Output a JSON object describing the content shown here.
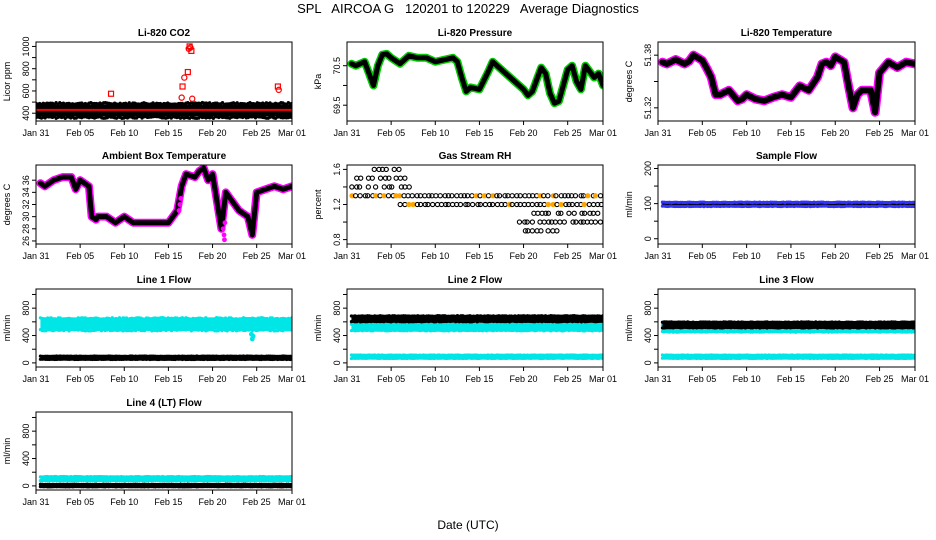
{
  "header": {
    "title": "SPL   AIRCOA G   120201 to 120229   Average Diagnostics"
  },
  "footer": {
    "xlabel": "Date (UTC)"
  },
  "colors": {
    "black": "#000000",
    "red": "#ff0000",
    "magenta": "#ff00ff",
    "green": "#00cc00",
    "cyan": "#00e5e5",
    "orange": "#ffa500",
    "blue": "#3333ff"
  },
  "chart_data": [
    {
      "id": "co2",
      "type": "scatter",
      "title": "Li-820 CO2",
      "ylabel": "Licor ppm",
      "xlim": [
        0,
        29
      ],
      "ylim": [
        330,
        1040
      ],
      "yticks": [
        400,
        500,
        600,
        700,
        800,
        900,
        1000
      ],
      "yticklabels": [
        "400",
        "",
        "600",
        "",
        "800",
        "",
        "1000"
      ],
      "xticks": [
        0,
        5,
        10,
        15,
        20,
        25,
        29
      ],
      "xticklabels": [
        "Jan 31",
        "Feb 05",
        "Feb 10",
        "Feb 15",
        "Feb 20",
        "Feb 25",
        "Mar 01"
      ],
      "series": [
        {
          "name": "black band",
          "style": "band",
          "color": "black",
          "x": [
            0,
            29
          ],
          "lo": [
            370,
            370
          ],
          "hi": [
            480,
            480
          ]
        },
        {
          "name": "red line",
          "style": "line",
          "color": "red",
          "x": [
            0,
            29
          ],
          "y": [
            430,
            430
          ]
        },
        {
          "name": "red outliers",
          "style": "hollow",
          "color": "red",
          "x": [
            8.5,
            16.5,
            16.6,
            16.8,
            17.2,
            17.3,
            17.4,
            17.5,
            17.6,
            17.7,
            27.4,
            27.5
          ],
          "y": [
            575,
            540,
            640,
            720,
            770,
            980,
            1000,
            990,
            960,
            530,
            640,
            610
          ]
        }
      ]
    },
    {
      "id": "pressure",
      "type": "scatter",
      "title": "Li-820 Pressure",
      "ylabel": "kPa",
      "xlim": [
        0,
        29
      ],
      "ylim": [
        69.1,
        71.1
      ],
      "yticks": [
        69.5,
        70,
        70.5
      ],
      "yticklabels": [
        "69.5",
        "",
        "70.5"
      ],
      "xticks": [
        0,
        5,
        10,
        15,
        20,
        25,
        29
      ],
      "xticklabels": [
        "Jan 31",
        "Feb 05",
        "Feb 10",
        "Feb 15",
        "Feb 20",
        "Feb 25",
        "Mar 01"
      ],
      "series": [
        {
          "name": "pressure",
          "style": "trace",
          "color": "black",
          "edge": "green",
          "width": 5,
          "x": [
            0.5,
            1,
            2,
            2.5,
            3,
            3.5,
            4,
            4.5,
            5,
            6,
            7,
            8,
            9,
            10,
            11,
            12,
            12.5,
            13,
            13.5,
            14,
            15,
            16,
            16.5,
            17,
            18,
            19,
            20,
            20.5,
            21,
            22,
            22.5,
            23,
            23.5,
            24,
            25,
            25.5,
            26,
            26.5,
            27,
            27.5,
            28,
            28.5,
            29
          ],
          "y": [
            70.55,
            70.5,
            70.6,
            70.3,
            70.0,
            70.5,
            70.78,
            70.8,
            70.7,
            70.55,
            70.75,
            70.7,
            70.7,
            70.6,
            70.65,
            70.7,
            70.6,
            70.2,
            69.85,
            69.95,
            69.9,
            70.35,
            70.6,
            70.5,
            70.3,
            70.1,
            69.9,
            69.75,
            69.85,
            70.45,
            70.3,
            69.8,
            69.55,
            69.6,
            70.4,
            70.5,
            70.1,
            69.9,
            70.5,
            70.35,
            70.2,
            70.3,
            70.0
          ]
        }
      ]
    },
    {
      "id": "temperature",
      "type": "scatter",
      "title": "Li-820 Temperature",
      "ylabel": "degrees C",
      "xlim": [
        0,
        29
      ],
      "ylim": [
        51.305,
        51.395
      ],
      "yticks": [
        51.32,
        51.35,
        51.38
      ],
      "yticklabels": [
        "51.32",
        "",
        "51.38"
      ],
      "xticks": [
        0,
        5,
        10,
        15,
        20,
        25,
        29
      ],
      "xticklabels": [
        "Jan 31",
        "Feb 05",
        "Feb 10",
        "Feb 15",
        "Feb 20",
        "Feb 25",
        "Mar 01"
      ],
      "series": [
        {
          "name": "temperature",
          "style": "trace",
          "color": "black",
          "edge": "magenta",
          "width": 6,
          "x": [
            0.5,
            1,
            2,
            3,
            3.5,
            4,
            5,
            5.5,
            6,
            6.5,
            7,
            8,
            9,
            9.5,
            10,
            11,
            12,
            13,
            14,
            15,
            16,
            17,
            18,
            18.5,
            19,
            19.5,
            20,
            21,
            21.5,
            22,
            22.5,
            23,
            24,
            24.5,
            25,
            26,
            27,
            28,
            29
          ],
          "y": [
            51.372,
            51.37,
            51.375,
            51.37,
            51.373,
            51.38,
            51.374,
            51.365,
            51.355,
            51.335,
            51.335,
            51.34,
            51.328,
            51.33,
            51.335,
            51.33,
            51.328,
            51.332,
            51.335,
            51.332,
            51.345,
            51.34,
            51.355,
            51.37,
            51.372,
            51.368,
            51.378,
            51.372,
            51.345,
            51.32,
            51.335,
            51.34,
            51.34,
            51.315,
            51.36,
            51.372,
            51.366,
            51.372,
            51.37
          ]
        }
      ]
    },
    {
      "id": "ambient",
      "type": "scatter",
      "title": "Ambient Box Temperature",
      "ylabel": "degrees C",
      "xlim": [
        0,
        29
      ],
      "ylim": [
        25.5,
        38.5
      ],
      "yticks": [
        26,
        28,
        30,
        32,
        34,
        36
      ],
      "yticklabels": [
        "26",
        "28",
        "30",
        "32",
        "34",
        "36"
      ],
      "xticks": [
        0,
        5,
        10,
        15,
        20,
        25,
        29
      ],
      "xticklabels": [
        "Jan 31",
        "Feb 05",
        "Feb 10",
        "Feb 15",
        "Feb 20",
        "Feb 25",
        "Mar 01"
      ],
      "series": [
        {
          "name": "ambient",
          "style": "trace",
          "color": "black",
          "edge": "magenta",
          "width": 5,
          "x": [
            0.5,
            1,
            2,
            3,
            4,
            4.5,
            5,
            6,
            6.3,
            6.8,
            7,
            8,
            9,
            10,
            11,
            12,
            13,
            15,
            16,
            16.5,
            17,
            18,
            18.5,
            19,
            19.5,
            20,
            21,
            21.5,
            22,
            23,
            24,
            24.5,
            25,
            26,
            27,
            28,
            29
          ],
          "y": [
            35.5,
            35,
            36,
            36.5,
            36.5,
            34.5,
            36,
            35,
            30,
            29.5,
            30,
            30,
            29,
            30,
            29,
            29,
            29,
            29,
            31,
            35,
            37,
            36.5,
            37.5,
            38,
            36,
            37,
            28,
            34,
            33,
            31,
            30,
            27,
            34,
            34.5,
            35,
            34.5,
            35
          ]
        },
        {
          "name": "ambient dips",
          "style": "points",
          "color": "magenta",
          "x": [
            16.2,
            16.3,
            16.4,
            21.2,
            21.3,
            21.35,
            21.4
          ],
          "y": [
            31,
            32,
            33,
            28,
            27,
            26.2,
            29
          ]
        }
      ]
    },
    {
      "id": "rh",
      "type": "scatter",
      "title": "Gas Stream RH",
      "ylabel": "percent",
      "xlim": [
        0,
        29
      ],
      "ylim": [
        0.75,
        1.65
      ],
      "yticks": [
        0.8,
        1.0,
        1.2,
        1.4,
        1.6
      ],
      "yticklabels": [
        "0.8",
        "",
        "1.2",
        "",
        "1.6"
      ],
      "xticks": [
        0,
        5,
        10,
        15,
        20,
        25,
        29
      ],
      "xticklabels": [
        "Jan 31",
        "Feb 05",
        "Feb 10",
        "Feb 15",
        "Feb 20",
        "Feb 25",
        "Mar 01"
      ],
      "series": [
        {
          "name": "rh levels",
          "style": "levels",
          "color": "black",
          "edge": "orange",
          "levels": [
            {
              "y": 1.6,
              "x0": 3,
              "x1": 6
            },
            {
              "y": 1.5,
              "x0": 1,
              "x1": 6.5
            },
            {
              "y": 1.4,
              "x0": 0.5,
              "x1": 7
            },
            {
              "y": 1.3,
              "x0": 0.5,
              "x1": 29
            },
            {
              "y": 1.2,
              "x0": 6,
              "x1": 29
            },
            {
              "y": 1.1,
              "x0": 21,
              "x1": 29
            },
            {
              "y": 1.0,
              "x0": 19.5,
              "x1": 29
            },
            {
              "y": 0.9,
              "x0": 20,
              "x1": 24
            }
          ]
        }
      ]
    },
    {
      "id": "sample",
      "type": "scatter",
      "title": "Sample Flow",
      "ylabel": "ml/min",
      "xlim": [
        0,
        29
      ],
      "ylim": [
        -15,
        210
      ],
      "yticks": [
        0,
        50,
        100,
        150,
        200
      ],
      "yticklabels": [
        "0",
        "",
        "100",
        "",
        "200"
      ],
      "xticks": [
        0,
        5,
        10,
        15,
        20,
        25,
        29
      ],
      "xticklabels": [
        "Jan 31",
        "Feb 05",
        "Feb 10",
        "Feb 15",
        "Feb 20",
        "Feb 25",
        "Mar 01"
      ],
      "series": [
        {
          "name": "sample",
          "style": "band",
          "color": "black",
          "edge": "blue",
          "x": [
            0.5,
            29
          ],
          "lo": [
            93,
            93
          ],
          "hi": [
            103,
            103
          ]
        }
      ]
    },
    {
      "id": "line1",
      "type": "scatter",
      "title": "Line 1 Flow",
      "ylabel": "ml/min",
      "xlim": [
        0,
        29
      ],
      "ylim": [
        -60,
        1080
      ],
      "yticks": [
        0,
        200,
        400,
        600,
        800,
        1000
      ],
      "yticklabels": [
        "0",
        "",
        "400",
        "",
        "800",
        ""
      ],
      "xticks": [
        0,
        5,
        10,
        15,
        20,
        25,
        29
      ],
      "xticklabels": [
        "Jan 31",
        "Feb 05",
        "Feb 10",
        "Feb 15",
        "Feb 20",
        "Feb 25",
        "Mar 01"
      ],
      "series": [
        {
          "name": "line1 cyan",
          "style": "band",
          "color": "cyan",
          "x": [
            0.5,
            29
          ],
          "lo": [
            490,
            490
          ],
          "hi": [
            640,
            640
          ]
        },
        {
          "name": "line1 dip",
          "style": "points",
          "color": "cyan",
          "x": [
            24.4,
            24.5,
            24.6
          ],
          "y": [
            420,
            350,
            390
          ]
        },
        {
          "name": "line1 black",
          "style": "band",
          "color": "black",
          "x": [
            0.5,
            29
          ],
          "lo": [
            55,
            55
          ],
          "hi": [
            95,
            95
          ]
        }
      ]
    },
    {
      "id": "line2",
      "type": "scatter",
      "title": "Line 2 Flow",
      "ylabel": "ml/min",
      "xlim": [
        0,
        29
      ],
      "ylim": [
        -60,
        1080
      ],
      "yticks": [
        0,
        200,
        400,
        600,
        800,
        1000
      ],
      "yticklabels": [
        "0",
        "",
        "400",
        "",
        "800",
        ""
      ],
      "xticks": [
        0,
        5,
        10,
        15,
        20,
        25,
        29
      ],
      "xticklabels": [
        "Jan 31",
        "Feb 05",
        "Feb 10",
        "Feb 15",
        "Feb 20",
        "Feb 25",
        "Mar 01"
      ],
      "series": [
        {
          "name": "line2 cyan",
          "style": "band",
          "color": "cyan",
          "x": [
            0.5,
            29
          ],
          "lo": [
            480,
            480
          ],
          "hi": [
            560,
            560
          ]
        },
        {
          "name": "line2 black",
          "style": "band",
          "color": "black",
          "x": [
            0.5,
            29
          ],
          "lo": [
            610,
            610
          ],
          "hi": [
            680,
            680
          ]
        },
        {
          "name": "line2 cyan low",
          "style": "band",
          "color": "cyan",
          "x": [
            0.5,
            29
          ],
          "lo": [
            70,
            70
          ],
          "hi": [
            110,
            110
          ]
        }
      ]
    },
    {
      "id": "line3",
      "type": "scatter",
      "title": "Line 3 Flow",
      "ylabel": "ml/min",
      "xlim": [
        0,
        29
      ],
      "ylim": [
        -60,
        1080
      ],
      "yticks": [
        0,
        200,
        400,
        600,
        800,
        1000
      ],
      "yticklabels": [
        "0",
        "",
        "400",
        "",
        "800",
        ""
      ],
      "xticks": [
        0,
        5,
        10,
        15,
        20,
        25,
        29
      ],
      "xticklabels": [
        "Jan 31",
        "Feb 05",
        "Feb 10",
        "Feb 15",
        "Feb 20",
        "Feb 25",
        "Mar 01"
      ],
      "series": [
        {
          "name": "line3 cyan",
          "style": "band",
          "color": "cyan",
          "x": [
            0.5,
            29
          ],
          "lo": [
            460,
            460
          ],
          "hi": [
            540,
            540
          ]
        },
        {
          "name": "line3 black",
          "style": "band",
          "color": "black",
          "x": [
            0.5,
            29
          ],
          "lo": [
            520,
            520
          ],
          "hi": [
            590,
            590
          ]
        },
        {
          "name": "line3 cyan low",
          "style": "band",
          "color": "cyan",
          "x": [
            0.5,
            29
          ],
          "lo": [
            70,
            70
          ],
          "hi": [
            110,
            110
          ]
        }
      ]
    },
    {
      "id": "line4",
      "type": "scatter",
      "title": "Line 4 (LT) Flow",
      "ylabel": "ml/min",
      "xlim": [
        0,
        29
      ],
      "ylim": [
        -60,
        1080
      ],
      "yticks": [
        0,
        200,
        400,
        600,
        800,
        1000
      ],
      "yticklabels": [
        "0",
        "",
        "400",
        "",
        "800",
        ""
      ],
      "xticks": [
        0,
        5,
        10,
        15,
        20,
        25,
        29
      ],
      "xticklabels": [
        "Jan 31",
        "Feb 05",
        "Feb 10",
        "Feb 15",
        "Feb 20",
        "Feb 25",
        "Mar 01"
      ],
      "series": [
        {
          "name": "line4 cyan",
          "style": "band",
          "color": "cyan",
          "x": [
            0.5,
            29
          ],
          "lo": [
            80,
            80
          ],
          "hi": [
            130,
            130
          ]
        },
        {
          "name": "line4 black",
          "style": "band",
          "color": "black",
          "x": [
            0.5,
            29
          ],
          "lo": [
            -10,
            -10
          ],
          "hi": [
            20,
            20
          ]
        }
      ]
    }
  ]
}
